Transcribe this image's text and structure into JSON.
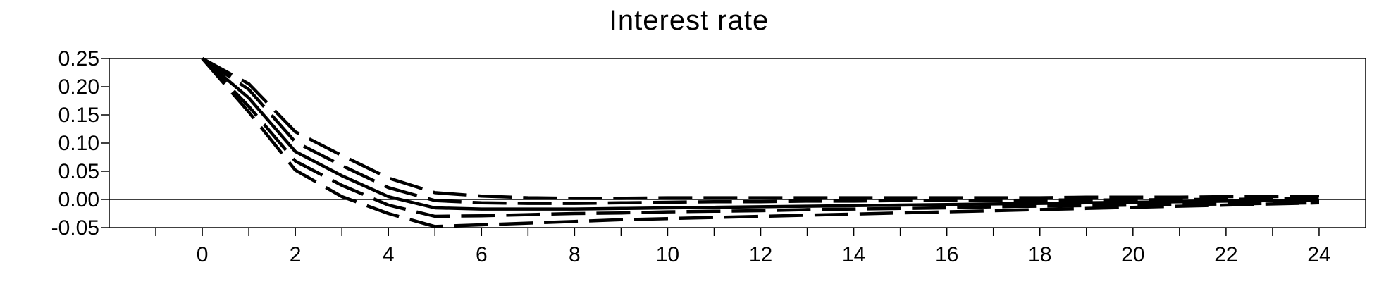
{
  "chart_data": {
    "type": "line",
    "title": "Interest rate",
    "xlabel": "",
    "ylabel": "",
    "x": [
      0,
      1,
      2,
      3,
      4,
      5,
      6,
      7,
      8,
      9,
      10,
      11,
      12,
      13,
      14,
      15,
      16,
      17,
      18,
      19,
      20,
      21,
      22,
      23,
      24
    ],
    "xlim": [
      -2,
      25
    ],
    "ylim": [
      -0.05,
      0.25
    ],
    "x_ticks": [
      "0",
      "2",
      "4",
      "6",
      "8",
      "10",
      "12",
      "14",
      "16",
      "18",
      "20",
      "22",
      "24"
    ],
    "y_ticks": [
      "0.25",
      "0.20",
      "0.15",
      "0.10",
      "0.05",
      "0.00",
      "-0.05"
    ],
    "zero_line": true,
    "grid": false,
    "series": [
      {
        "style": "solid",
        "values": [
          0.25,
          0.18,
          0.085,
          0.042,
          0.005,
          -0.015,
          -0.017,
          -0.017,
          -0.017,
          -0.016,
          -0.015,
          -0.014,
          -0.013,
          -0.012,
          -0.011,
          -0.01,
          -0.009,
          -0.008,
          -0.007,
          -0.006,
          -0.005,
          -0.004,
          -0.003,
          -0.002,
          -0.001
        ]
      },
      {
        "style": "dashed",
        "values": [
          0.25,
          0.205,
          0.12,
          0.078,
          0.038,
          0.012,
          0.006,
          0.003,
          0.002,
          0.002,
          0.003,
          0.003,
          0.003,
          0.003,
          0.003,
          0.003,
          0.003,
          0.003,
          0.003,
          0.004,
          0.004,
          0.004,
          0.005,
          0.005,
          0.006
        ]
      },
      {
        "style": "dashed",
        "values": [
          0.25,
          0.195,
          0.102,
          0.06,
          0.021,
          -0.002,
          -0.006,
          -0.007,
          -0.007,
          -0.006,
          -0.005,
          -0.004,
          -0.004,
          -0.003,
          -0.003,
          -0.002,
          -0.002,
          -0.002,
          -0.001,
          -0.001,
          -0.001,
          0.0,
          0.0,
          0.001,
          0.001
        ]
      },
      {
        "style": "dashed",
        "values": [
          0.25,
          0.165,
          0.068,
          0.025,
          -0.01,
          -0.03,
          -0.029,
          -0.027,
          -0.025,
          -0.024,
          -0.022,
          -0.021,
          -0.02,
          -0.018,
          -0.017,
          -0.016,
          -0.015,
          -0.013,
          -0.012,
          -0.011,
          -0.01,
          -0.009,
          -0.008,
          -0.007,
          -0.006
        ]
      },
      {
        "style": "dashed",
        "values": [
          0.25,
          0.155,
          0.052,
          0.005,
          -0.025,
          -0.048,
          -0.045,
          -0.042,
          -0.039,
          -0.036,
          -0.034,
          -0.032,
          -0.03,
          -0.028,
          -0.026,
          -0.024,
          -0.022,
          -0.02,
          -0.018,
          -0.016,
          -0.014,
          -0.012,
          -0.01,
          -0.008,
          -0.006
        ]
      }
    ]
  }
}
